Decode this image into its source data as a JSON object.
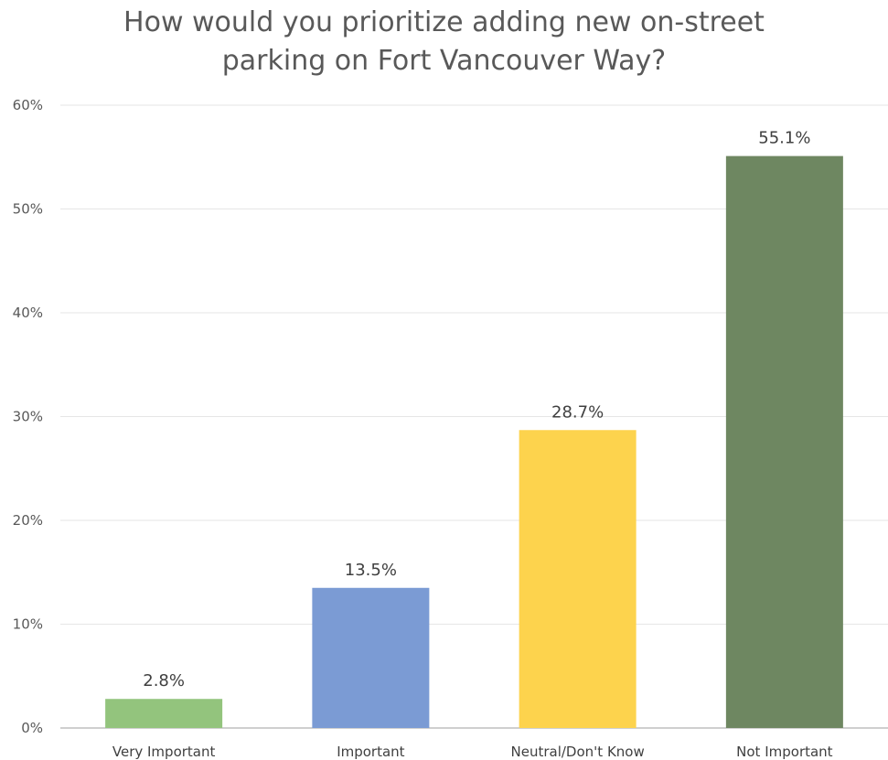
{
  "chart_data": {
    "type": "bar",
    "title_lines": [
      "How would you prioritize adding new on-street",
      "parking on Fort Vancouver Way?"
    ],
    "categories": [
      "Very Important",
      "Important",
      "Neutral/Don't Know",
      "Not Important"
    ],
    "values": [
      2.8,
      13.5,
      28.7,
      55.1
    ],
    "data_labels": [
      "2.8%",
      "13.5%",
      "28.7%",
      "55.1%"
    ],
    "colors": [
      "#93c47d",
      "#7b9bd4",
      "#fdd34d",
      "#6e8761"
    ],
    "ylim": [
      0,
      60
    ],
    "yticks": [
      0,
      10,
      20,
      30,
      40,
      50,
      60
    ],
    "ytick_labels": [
      "0%",
      "10%",
      "20%",
      "30%",
      "40%",
      "50%",
      "60%"
    ],
    "grid": true,
    "legend": "none"
  }
}
